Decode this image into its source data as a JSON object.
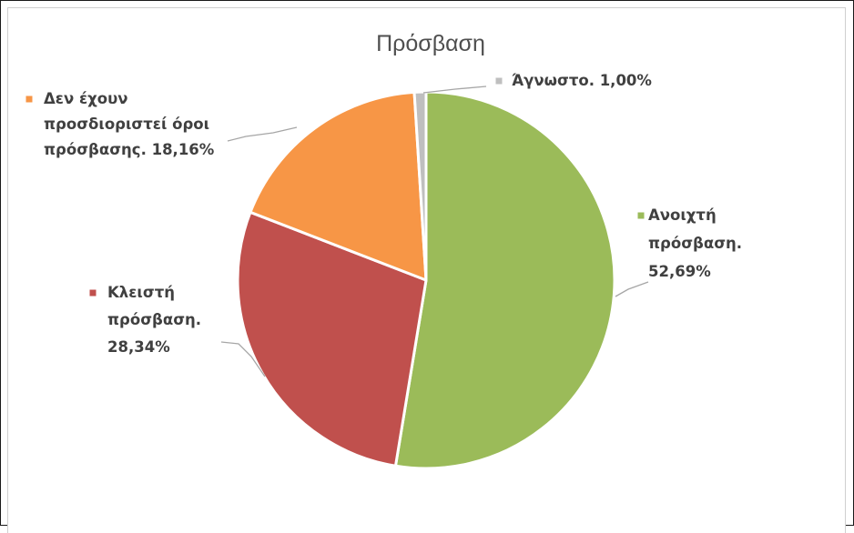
{
  "chart_data": {
    "type": "pie",
    "title": "Πρόσβαση",
    "slices": [
      {
        "name": "Ανοιχτή πρόσβαση",
        "value": 52.69,
        "color": "#9bbb59",
        "label_lines": [
          "Ανοιχτή",
          "πρόσβαση.",
          "52,69%"
        ]
      },
      {
        "name": "Κλειστή πρόσβαση",
        "value": 28.34,
        "color": "#c0504d",
        "label_lines": [
          "Κλειστή",
          "πρόσβαση.",
          "28,34%"
        ]
      },
      {
        "name": "Δεν έχουν προσδιοριστεί όροι πρόσβασης",
        "value": 18.16,
        "color": "#f79646",
        "label_lines": [
          "Δεν έχουν",
          "προσδιοριστεί όροι",
          "πρόσβασης. 18,16%"
        ]
      },
      {
        "name": "Άγνωστο",
        "value": 1.0,
        "color": "#bfbfbf",
        "label_lines": [
          "Άγνωστο. 1,00%"
        ]
      }
    ],
    "start_angle_deg": 0,
    "direction": "clockwise",
    "legend": "none",
    "data_labels": "outside with leader lines"
  }
}
